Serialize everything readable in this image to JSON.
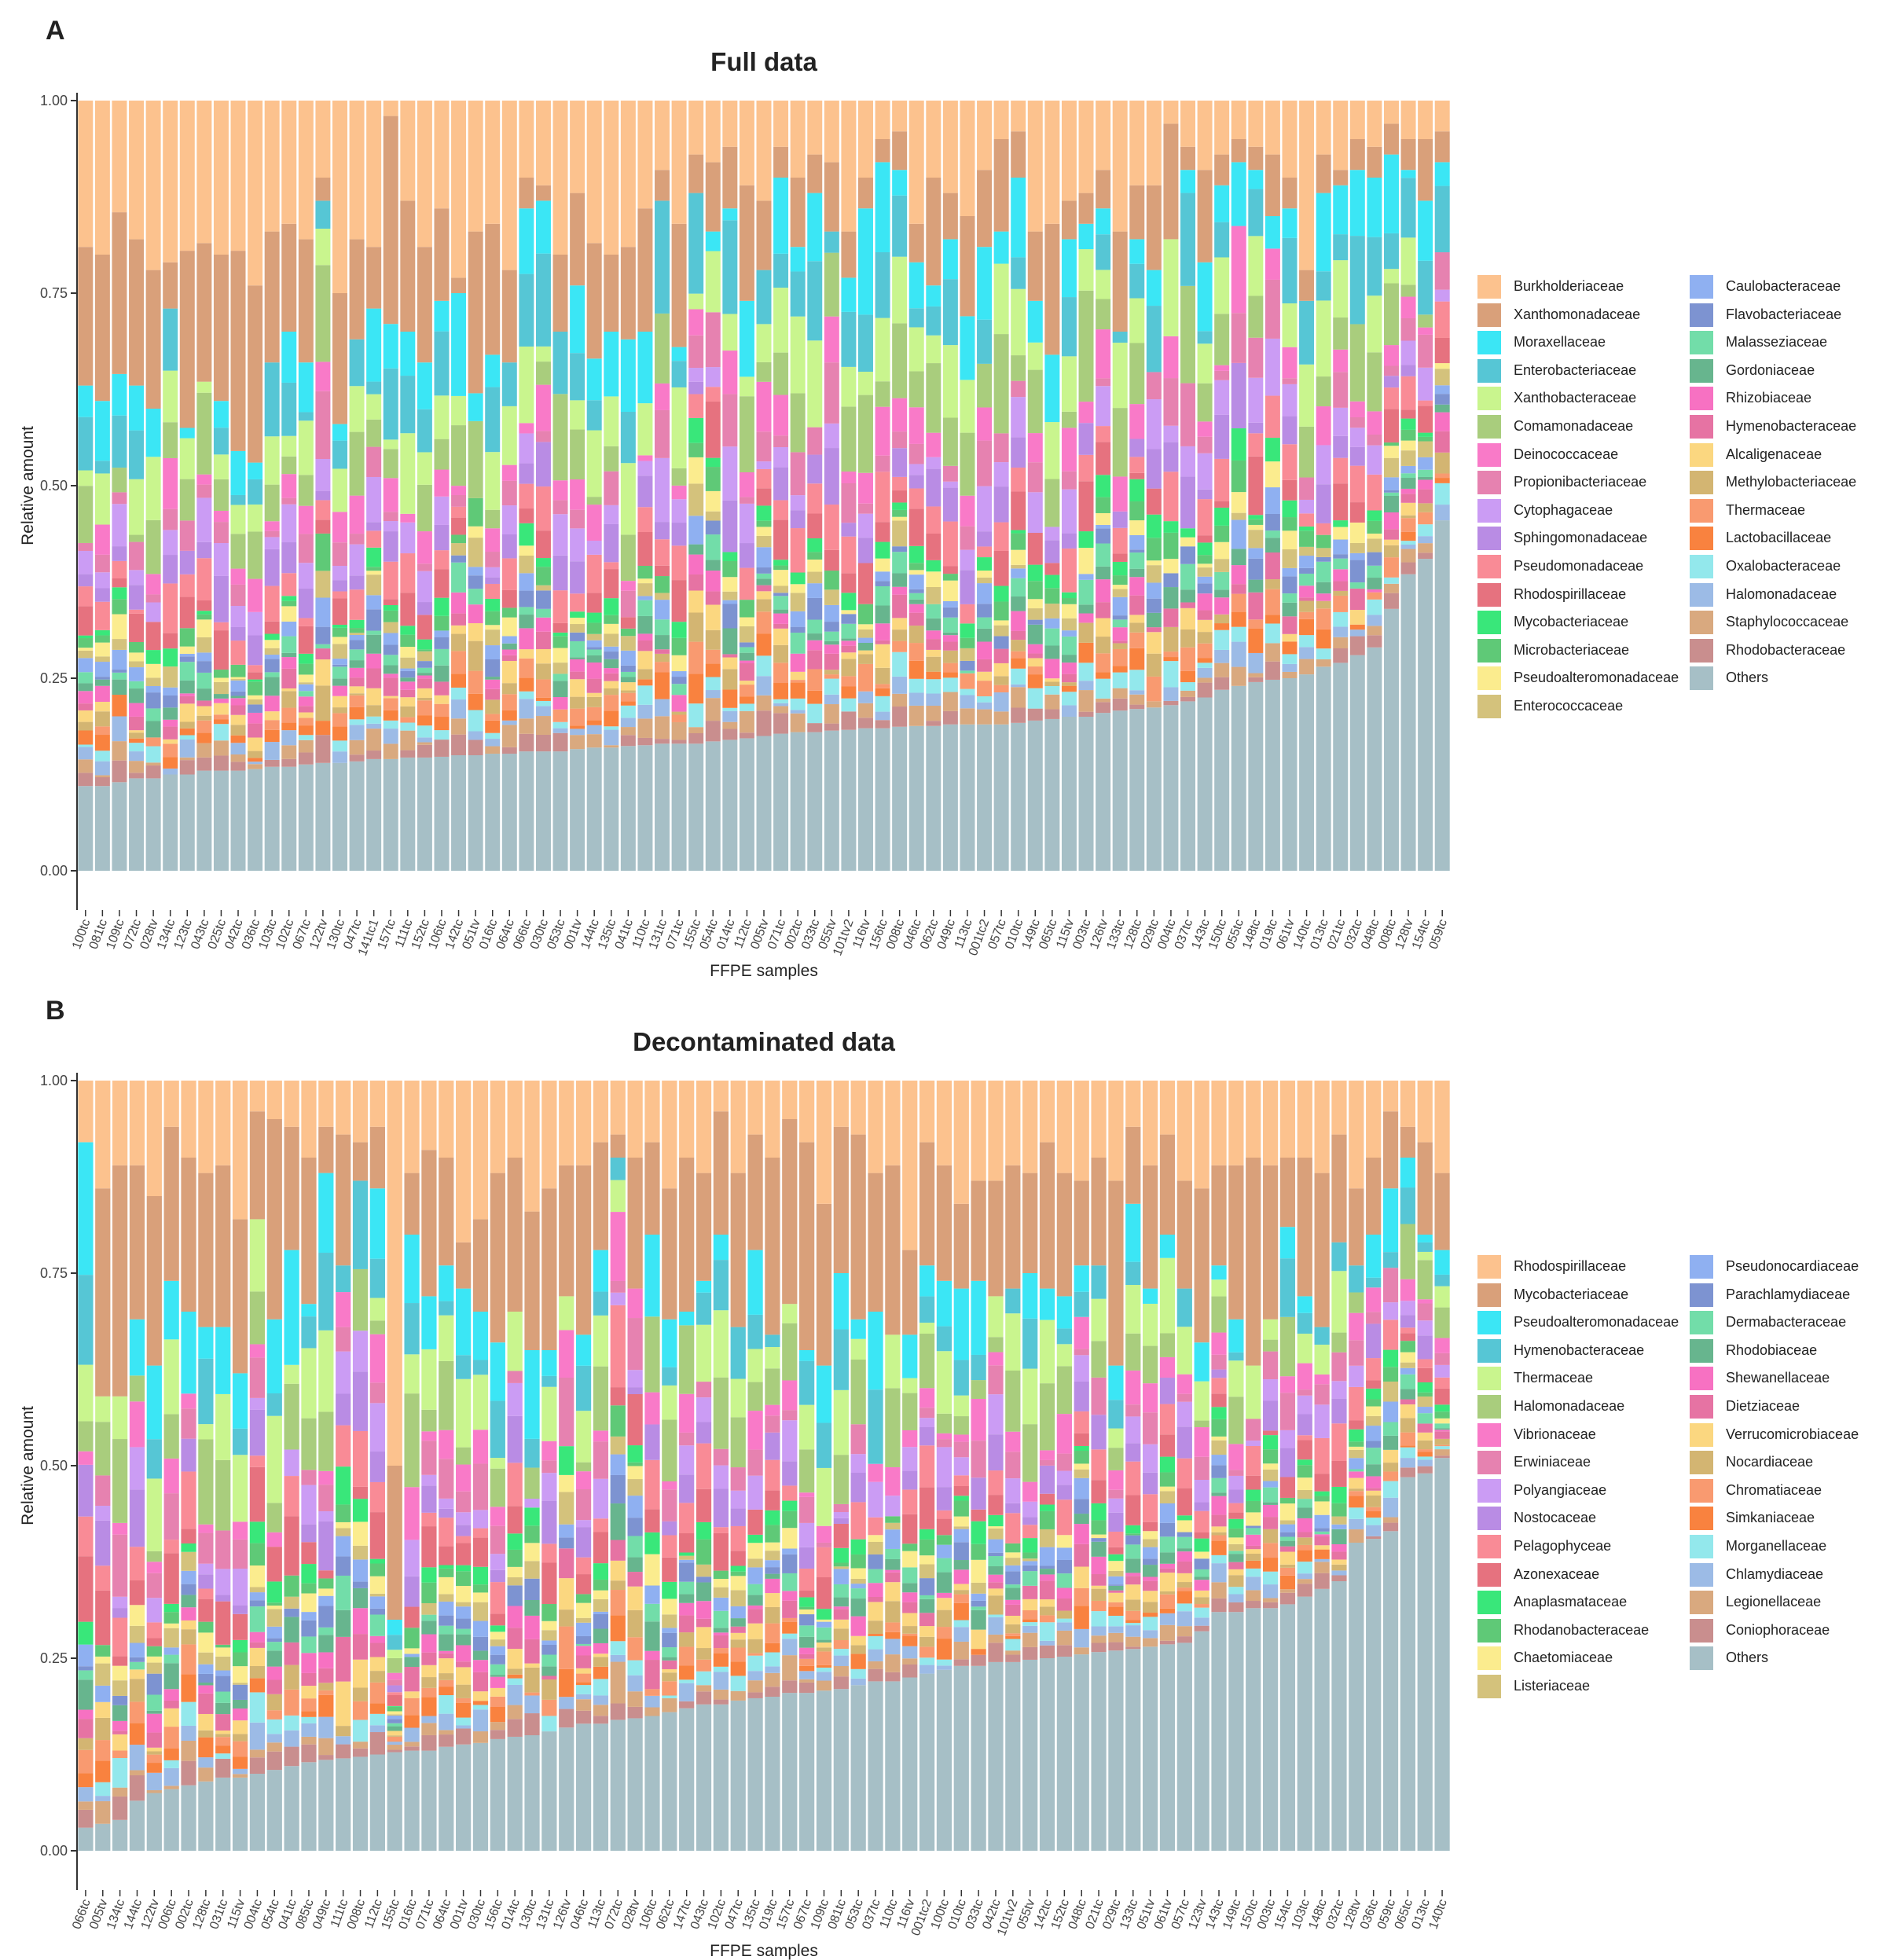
{
  "chart_data": [
    {
      "panel": "A",
      "type": "bar",
      "stacked": true,
      "title": "Full data",
      "xlabel": "FFPE samples",
      "ylabel": "Relative amount",
      "ylim": [
        0,
        1
      ],
      "yticks": [
        "0.00",
        "0.25",
        "0.50",
        "0.75",
        "1.00"
      ],
      "grid": false,
      "legend_position": "right",
      "categories": [
        "100tc",
        "081tc",
        "109tc",
        "072tc",
        "028tv",
        "134tc",
        "123tc",
        "043tc",
        "025tc",
        "042tc",
        "036tc",
        "103tc",
        "102tc",
        "067tc",
        "122tv",
        "130tc",
        "047tc",
        "141tc1",
        "157tc",
        "111tc",
        "152tc",
        "106tc",
        "142tc",
        "051tv",
        "016tc",
        "064tc",
        "066tc",
        "030tc",
        "053tc",
        "001tv",
        "144tc",
        "135tc",
        "041tc",
        "110tc",
        "131tc",
        "071tc",
        "155tc",
        "054tc",
        "014tc",
        "112tc",
        "005tv",
        "071tc",
        "002tc",
        "033tc",
        "055tv",
        "101tv2",
        "116tv",
        "156tc",
        "008tc",
        "046tc",
        "062tc",
        "049tc",
        "113tc",
        "001tc2",
        "057tc",
        "010tc",
        "149tc",
        "065tc",
        "115tv",
        "003tc",
        "126tv",
        "133tc",
        "128tc",
        "029tc",
        "004tc",
        "037tc",
        "143tc",
        "150tc",
        "055tc",
        "148tc",
        "019tc",
        "061tv",
        "140tc",
        "013tc",
        "021tc",
        "032tc",
        "048tc",
        "008tc",
        "128tv",
        "154tc",
        "059tc"
      ],
      "series": [
        {
          "name": "Others",
          "color": "#A6BFC6"
        },
        {
          "name": "Rhodobacteraceae",
          "color": "#C98E8E"
        },
        {
          "name": "Staphylococcaceae",
          "color": "#D9A97F"
        },
        {
          "name": "Halomonadaceae",
          "color": "#9CBBE6"
        },
        {
          "name": "Oxalobacteraceae",
          "color": "#93E8EC"
        },
        {
          "name": "Lactobacillaceae",
          "color": "#F9823F"
        },
        {
          "name": "Thermaceae",
          "color": "#F99A70"
        },
        {
          "name": "Methylobacteriaceae",
          "color": "#D3B572"
        },
        {
          "name": "Alcaligenaceae",
          "color": "#FBD780"
        },
        {
          "name": "Hymenobacteraceae",
          "color": "#E673A3"
        },
        {
          "name": "Rhizobiaceae",
          "color": "#F771C2"
        },
        {
          "name": "Gordoniaceae",
          "color": "#67B58E"
        },
        {
          "name": "Malasseziaceae",
          "color": "#72DDA9"
        },
        {
          "name": "Flavobacteriaceae",
          "color": "#7D93D1"
        },
        {
          "name": "Caulobacteraceae",
          "color": "#8FB0F1"
        },
        {
          "name": "Enterococcaceae",
          "color": "#D4C27C"
        },
        {
          "name": "Pseudoalteromonadaceae",
          "color": "#FBEC8E"
        },
        {
          "name": "Microbacteriaceae",
          "color": "#5FC977"
        },
        {
          "name": "Mycobacteriaceae",
          "color": "#39E77A"
        },
        {
          "name": "Rhodospirillaceae",
          "color": "#E6727F"
        },
        {
          "name": "Pseudomonadaceae",
          "color": "#F98B96"
        },
        {
          "name": "Sphingomonadaceae",
          "color": "#B98CE4"
        },
        {
          "name": "Cytophagaceae",
          "color": "#CB9CF4"
        },
        {
          "name": "Propionibacteriaceae",
          "color": "#E682B0"
        },
        {
          "name": "Deinococcaceae",
          "color": "#F97AC8"
        },
        {
          "name": "Comamonadaceae",
          "color": "#A9CD7D"
        },
        {
          "name": "Xanthobacteraceae",
          "color": "#C9F58E"
        },
        {
          "name": "Enterobacteriaceae",
          "color": "#56C6D5"
        },
        {
          "name": "Moraxellaceae",
          "color": "#3BE6F5"
        },
        {
          "name": "Xanthomonadaceae",
          "color": "#D9A07A"
        },
        {
          "name": "Burkholderiaceae",
          "color": "#FCC28E"
        }
      ],
      "legend_columns": [
        [
          "Burkholderiaceae",
          "Xanthomonadaceae",
          "Moraxellaceae",
          "Enterobacteriaceae",
          "Xanthobacteraceae",
          "Comamonadaceae",
          "Deinococcaceae",
          "Propionibacteriaceae",
          "Cytophagaceae",
          "Sphingomonadaceae",
          "Pseudomonadaceae",
          "Rhodospirillaceae",
          "Mycobacteriaceae",
          "Microbacteriaceae",
          "Pseudoalteromonadaceae",
          "Enterococcaceae"
        ],
        [
          "Caulobacteraceae",
          "Flavobacteriaceae",
          "Malasseziaceae",
          "Gordoniaceae",
          "Rhizobiaceae",
          "Hymenobacteraceae",
          "Alcaligenaceae",
          "Methylobacteriaceae",
          "Thermaceae",
          "Lactobacillaceae",
          "Oxalobacteraceae",
          "Halomonadaceae",
          "Staphylococcaceae",
          "Rhodobacteraceae",
          "Others"
        ]
      ],
      "others_values": [
        0.11,
        0.11,
        0.115,
        0.12,
        0.12,
        0.125,
        0.125,
        0.13,
        0.13,
        0.13,
        0.132,
        0.135,
        0.135,
        0.138,
        0.14,
        0.14,
        0.142,
        0.145,
        0.145,
        0.147,
        0.147,
        0.148,
        0.15,
        0.15,
        0.152,
        0.152,
        0.155,
        0.155,
        0.155,
        0.158,
        0.16,
        0.16,
        0.162,
        0.163,
        0.165,
        0.165,
        0.165,
        0.168,
        0.17,
        0.172,
        0.175,
        0.178,
        0.18,
        0.18,
        0.182,
        0.183,
        0.185,
        0.185,
        0.187,
        0.188,
        0.188,
        0.19,
        0.19,
        0.19,
        0.19,
        0.192,
        0.195,
        0.197,
        0.2,
        0.2,
        0.205,
        0.208,
        0.21,
        0.212,
        0.215,
        0.22,
        0.225,
        0.235,
        0.24,
        0.245,
        0.248,
        0.25,
        0.255,
        0.265,
        0.27,
        0.28,
        0.29,
        0.34,
        0.385,
        0.405,
        0.455
      ],
      "burk_values": [
        0.19,
        0.2,
        0.145,
        0.18,
        0.22,
        0.21,
        0.195,
        0.185,
        0.2,
        0.195,
        0.24,
        0.17,
        0.16,
        0.18,
        0.1,
        0.25,
        0.18,
        0.19,
        0.02,
        0.13,
        0.19,
        0.14,
        0.23,
        0.17,
        0.16,
        0.22,
        0.1,
        0.11,
        0.2,
        0.12,
        0.185,
        0.2,
        0.19,
        0.14,
        0.09,
        0.16,
        0.07,
        0.08,
        0.06,
        0.11,
        0.13,
        0.06,
        0.1,
        0.07,
        0.08,
        0.17,
        0.1,
        0.05,
        0.04,
        0.16,
        0.1,
        0.12,
        0.15,
        0.09,
        0.05,
        0.04,
        0.17,
        0.16,
        0.13,
        0.12,
        0.09,
        0.17,
        0.11,
        0.11,
        0.03,
        0.06,
        0.09,
        0.07,
        0.05,
        0.06,
        0.07,
        0.1,
        0.22,
        0.07,
        0.09,
        0.05,
        0.06,
        0.03,
        0.05,
        0.05,
        0.04
      ],
      "xan_values": [
        0.18,
        0.19,
        0.21,
        0.19,
        0.18,
        0.06,
        0.23,
        0.18,
        0.19,
        0.26,
        0.23,
        0.17,
        0.14,
        0.16,
        0.03,
        0.17,
        0.13,
        0.08,
        0.27,
        0.17,
        0.15,
        0.12,
        0.02,
        0.21,
        0.17,
        0.12,
        0.04,
        0.02,
        0.1,
        0.12,
        0.15,
        0.1,
        0.12,
        0.16,
        0.04,
        0.16,
        0.05,
        0.09,
        0.08,
        0.15,
        0.09,
        0.04,
        0.09,
        0.05,
        0.09,
        0.06,
        0.04,
        0.03,
        0.05,
        0.05,
        0.14,
        0.06,
        0.13,
        0.1,
        0.12,
        0.06,
        0.09,
        0.17,
        0.05,
        0.04,
        0.05,
        0.13,
        0.07,
        0.11,
        0.15,
        0.03,
        0.12,
        0.04,
        0.03,
        0.03,
        0.08,
        0.04,
        0.04,
        0.05,
        0.02,
        0.04,
        0.04,
        0.04,
        0.04,
        0.08,
        0.04
      ],
      "seed": 7
    },
    {
      "panel": "B",
      "type": "bar",
      "stacked": true,
      "title": "Decontaminated data",
      "xlabel": "FFPE samples",
      "ylabel": "Relative amount",
      "ylim": [
        0,
        1
      ],
      "yticks": [
        "0.00",
        "0.25",
        "0.50",
        "0.75",
        "1.00"
      ],
      "grid": false,
      "legend_position": "right",
      "categories": [
        "066tc",
        "005tv",
        "134tc",
        "144tc",
        "122tv",
        "006tc",
        "002tc",
        "128tc",
        "031tc",
        "115tv",
        "004tc",
        "054tc",
        "041tc",
        "085tc",
        "049tc",
        "111tc",
        "008tc",
        "112tc",
        "155tc",
        "016tc",
        "071tc",
        "064tc",
        "001tv",
        "030tc",
        "156tc",
        "014tc",
        "130tc",
        "131tc",
        "126tv",
        "046tc",
        "113tc",
        "072tc",
        "028tv",
        "106tc",
        "062tc",
        "147tc",
        "043tc",
        "102tc",
        "047tc",
        "135tc",
        "019tc",
        "157tc",
        "067tc",
        "109tc",
        "081tc",
        "053tc",
        "037tc",
        "110tc",
        "116tv",
        "001tc2",
        "100tc",
        "010tc",
        "033tc",
        "042tc",
        "101tv2",
        "055tv",
        "142tc",
        "152tc",
        "048tc",
        "021tc",
        "029tc",
        "133tc",
        "051tv",
        "061tv",
        "057tc",
        "123tv",
        "143tc",
        "149tc",
        "150tc",
        "003tc",
        "154tc",
        "103tc",
        "148tc",
        "032tc",
        "128tv",
        "036tc",
        "059tc",
        "065tc",
        "013tc",
        "140tc"
      ],
      "series": [
        {
          "name": "Others",
          "color": "#A6BFC6"
        },
        {
          "name": "Coniophoraceae",
          "color": "#C98E8E"
        },
        {
          "name": "Legionellaceae",
          "color": "#D9A97F"
        },
        {
          "name": "Chlamydiaceae",
          "color": "#9CBBE6"
        },
        {
          "name": "Morganellaceae",
          "color": "#93E8EC"
        },
        {
          "name": "Simkaniaceae",
          "color": "#F9823F"
        },
        {
          "name": "Chromatiaceae",
          "color": "#F99A70"
        },
        {
          "name": "Nocardiaceae",
          "color": "#D3B572"
        },
        {
          "name": "Verrucomicrobiaceae",
          "color": "#FBD780"
        },
        {
          "name": "Dietziaceae",
          "color": "#E673A3"
        },
        {
          "name": "Shewanellaceae",
          "color": "#F771C2"
        },
        {
          "name": "Rhodobiaceae",
          "color": "#67B58E"
        },
        {
          "name": "Dermabacteraceae",
          "color": "#72DDA9"
        },
        {
          "name": "Parachlamydiaceae",
          "color": "#7D93D1"
        },
        {
          "name": "Pseudonocardiaceae",
          "color": "#8FB0F1"
        },
        {
          "name": "Listeriaceae",
          "color": "#D4C27C"
        },
        {
          "name": "Chaetomiaceae",
          "color": "#FBEC8E"
        },
        {
          "name": "Rhodanobacteraceae",
          "color": "#5FC977"
        },
        {
          "name": "Anaplasmataceae",
          "color": "#39E77A"
        },
        {
          "name": "Azonexaceae",
          "color": "#E6727F"
        },
        {
          "name": "Pelagophyceae",
          "color": "#F98B96"
        },
        {
          "name": "Nostocaceae",
          "color": "#B98CE4"
        },
        {
          "name": "Polyangiaceae",
          "color": "#CB9CF4"
        },
        {
          "name": "Erwiniaceae",
          "color": "#E682B0"
        },
        {
          "name": "Vibrionaceae",
          "color": "#F97AC8"
        },
        {
          "name": "Halomonadaceae",
          "color": "#A9CD7D"
        },
        {
          "name": "Thermaceae",
          "color": "#C9F58E"
        },
        {
          "name": "Hymenobacteraceae",
          "color": "#56C6D5"
        },
        {
          "name": "Pseudoalteromonadaceae",
          "color": "#3BE6F5"
        },
        {
          "name": "Mycobacteriaceae",
          "color": "#D9A07A"
        },
        {
          "name": "Rhodospirillaceae",
          "color": "#FCC28E"
        }
      ],
      "legend_columns": [
        [
          "Rhodospirillaceae",
          "Mycobacteriaceae",
          "Pseudoalteromonadaceae",
          "Hymenobacteraceae",
          "Thermaceae",
          "Halomonadaceae",
          "Vibrionaceae",
          "Erwiniaceae",
          "Polyangiaceae",
          "Nostocaceae",
          "Pelagophyceae",
          "Azonexaceae",
          "Anaplasmataceae",
          "Rhodanobacteraceae",
          "Chaetomiaceae",
          "Listeriaceae"
        ],
        [
          "Pseudonocardiaceae",
          "Parachlamydiaceae",
          "Dermabacteraceae",
          "Rhodobiaceae",
          "Shewanellaceae",
          "Dietziaceae",
          "Verrucomicrobiaceae",
          "Nocardiaceae",
          "Chromatiaceae",
          "Simkaniaceae",
          "Morganellaceae",
          "Chlamydiaceae",
          "Legionellaceae",
          "Coniophoraceae",
          "Others"
        ]
      ],
      "others_values": [
        0.03,
        0.035,
        0.04,
        0.065,
        0.075,
        0.08,
        0.085,
        0.09,
        0.095,
        0.095,
        0.1,
        0.105,
        0.11,
        0.115,
        0.118,
        0.12,
        0.122,
        0.125,
        0.128,
        0.13,
        0.13,
        0.135,
        0.138,
        0.14,
        0.145,
        0.148,
        0.15,
        0.155,
        0.16,
        0.165,
        0.165,
        0.17,
        0.172,
        0.175,
        0.18,
        0.185,
        0.19,
        0.19,
        0.195,
        0.198,
        0.2,
        0.205,
        0.205,
        0.208,
        0.21,
        0.215,
        0.22,
        0.22,
        0.225,
        0.23,
        0.235,
        0.24,
        0.24,
        0.245,
        0.245,
        0.248,
        0.25,
        0.252,
        0.255,
        0.258,
        0.26,
        0.262,
        0.265,
        0.268,
        0.27,
        0.285,
        0.31,
        0.31,
        0.315,
        0.315,
        0.32,
        0.33,
        0.34,
        0.35,
        0.4,
        0.405,
        0.415,
        0.485,
        0.49,
        0.51,
        0.61
      ],
      "burk_values": [
        0.08,
        0.14,
        0.11,
        0.11,
        0.15,
        0.06,
        0.1,
        0.12,
        0.11,
        0.18,
        0.04,
        0.05,
        0.06,
        0.1,
        0.06,
        0.07,
        0.08,
        0.06,
        0.5,
        0.12,
        0.09,
        0.1,
        0.21,
        0.18,
        0.12,
        0.1,
        0.17,
        0.14,
        0.11,
        0.11,
        0.08,
        0.07,
        0.1,
        0.08,
        0.14,
        0.1,
        0.12,
        0.04,
        0.12,
        0.07,
        0.1,
        0.05,
        0.08,
        0.16,
        0.06,
        0.07,
        0.12,
        0.11,
        0.22,
        0.08,
        0.11,
        0.16,
        0.13,
        0.13,
        0.11,
        0.12,
        0.08,
        0.12,
        0.13,
        0.1,
        0.13,
        0.06,
        0.11,
        0.07,
        0.13,
        0.14,
        0.11,
        0.11,
        0.1,
        0.11,
        0.1,
        0.1,
        0.12,
        0.07,
        0.14,
        0.1,
        0.04,
        0.06,
        0.08,
        0.12
      ],
      "xan_values": [
        0.0,
        0.27,
        0.3,
        0.2,
        0.22,
        0.2,
        0.2,
        0.2,
        0.21,
        0.2,
        0.14,
        0.26,
        0.16,
        0.19,
        0.06,
        0.17,
        0.05,
        0.08,
        0.2,
        0.08,
        0.19,
        0.14,
        0.06,
        0.12,
        0.22,
        0.2,
        0.18,
        0.21,
        0.17,
        0.22,
        0.14,
        0.03,
        0.17,
        0.12,
        0.17,
        0.2,
        0.14,
        0.16,
        0.2,
        0.15,
        0.23,
        0.24,
        0.27,
        0.21,
        0.19,
        0.24,
        0.18,
        0.22,
        0.11,
        0.16,
        0.15,
        0.11,
        0.13,
        0.15,
        0.16,
        0.13,
        0.19,
        0.16,
        0.11,
        0.14,
        0.24,
        0.1,
        0.16,
        0.13,
        0.14,
        0.2,
        0.13,
        0.2,
        0.27,
        0.2,
        0.09,
        0.18,
        0.2,
        0.14,
        0.1,
        0.1,
        0.1,
        0.04,
        0.12,
        0.1
      ],
      "seed": 13
    }
  ],
  "ui": {
    "panel_a_letter": "A",
    "panel_b_letter": "B"
  }
}
